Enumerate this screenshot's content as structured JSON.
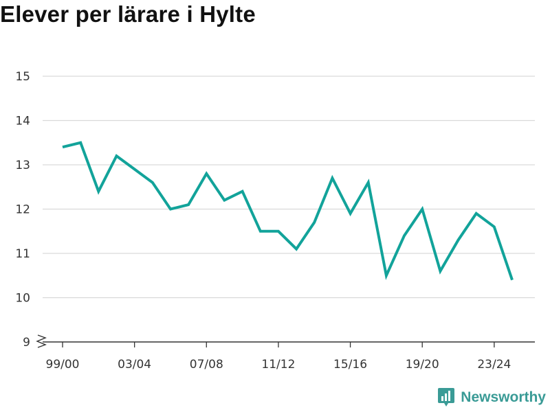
{
  "colors": {
    "line": "#12a39a",
    "grid": "#d9d9d9",
    "axis": "#333333",
    "brand": "#3a9b96"
  },
  "brand": {
    "name": "Newsworthy",
    "icon": "newsworthy-logo-icon"
  },
  "chart_data": {
    "type": "line",
    "title": "Elever per lärare i Hylte",
    "xlabel": "",
    "ylabel": "",
    "x": [
      "99/00",
      "00/01",
      "01/02",
      "02/03",
      "03/04",
      "04/05",
      "05/06",
      "06/07",
      "07/08",
      "08/09",
      "09/10",
      "10/11",
      "11/12",
      "12/13",
      "13/14",
      "14/15",
      "15/16",
      "16/17",
      "17/18",
      "18/19",
      "19/20",
      "20/21",
      "21/22",
      "22/23",
      "23/24",
      "24/25"
    ],
    "x_tick_labels": [
      "99/00",
      "03/04",
      "07/08",
      "11/12",
      "15/16",
      "19/20",
      "23/24"
    ],
    "y_ticks": [
      9,
      10,
      11,
      12,
      13,
      14,
      15
    ],
    "ylim": [
      9,
      15
    ],
    "y_axis_break": true,
    "grid": true,
    "series": [
      {
        "values": [
          13.4,
          13.5,
          12.4,
          13.2,
          12.9,
          12.6,
          12.0,
          12.1,
          12.8,
          12.2,
          12.4,
          11.5,
          11.5,
          11.1,
          11.7,
          12.7,
          11.9,
          12.6,
          10.5,
          11.4,
          12.0,
          10.6,
          11.3,
          11.9,
          11.6,
          10.4
        ]
      }
    ]
  }
}
